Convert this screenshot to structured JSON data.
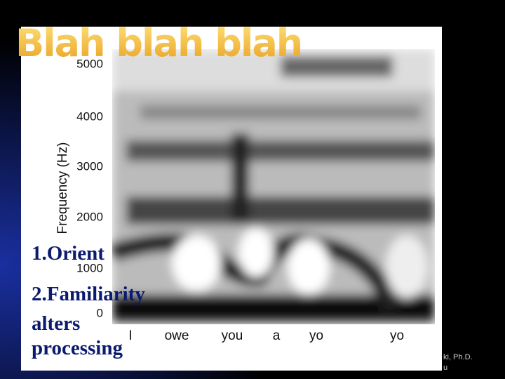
{
  "slide": {
    "title": "Blah blah blah",
    "spectrogram": {
      "y_label": "Frequency (Hz)",
      "y_ticks": [
        "5000",
        "4000",
        "3000",
        "2000",
        "1000",
        "0"
      ],
      "words": [
        "I",
        "owe",
        "you",
        "a",
        "yo",
        "yo"
      ]
    },
    "list": [
      "1.Orient",
      "2.Familiarity",
      "alters",
      "processing"
    ],
    "footer": [
      "ki, Ph.D.",
      "u"
    ]
  }
}
